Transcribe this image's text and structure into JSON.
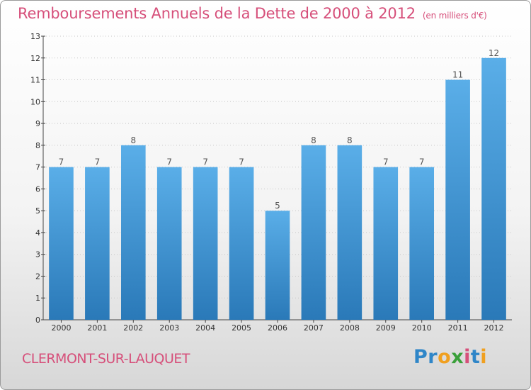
{
  "title": "Remboursements Annuels de la Dette de 2000 à 2012",
  "unit_note": "(en milliers d'€)",
  "commune": "CLERMONT-SUR-LAUQUET",
  "logo": {
    "letters": [
      {
        "char": "P",
        "color": "#2f86c8"
      },
      {
        "char": "r",
        "color": "#2f86c8"
      },
      {
        "char": "o",
        "color": "#f0a020"
      },
      {
        "char": "x",
        "color": "#3aa03a"
      },
      {
        "char": "i",
        "color": "#d64f7a"
      },
      {
        "char": "t",
        "color": "#2f86c8"
      },
      {
        "char": "i",
        "color": "#f0a020"
      }
    ]
  },
  "colors": {
    "title": "#d64f7a",
    "bar_top": "#5aaee8",
    "bar_bottom": "#2a79b8",
    "grid": "#c8c8c8"
  },
  "chart_data": {
    "type": "bar",
    "categories": [
      "2000",
      "2001",
      "2002",
      "2003",
      "2004",
      "2005",
      "2006",
      "2007",
      "2008",
      "2009",
      "2010",
      "2011",
      "2012"
    ],
    "values": [
      7,
      7,
      8,
      7,
      7,
      7,
      5,
      8,
      8,
      7,
      7,
      11,
      12
    ],
    "ylim": [
      0,
      13
    ],
    "yticks": [
      0,
      1,
      2,
      3,
      4,
      5,
      6,
      7,
      8,
      9,
      10,
      11,
      12,
      13
    ],
    "grid": true,
    "title": "Remboursements Annuels de la Dette de 2000 à 2012",
    "xlabel": "",
    "ylabel": ""
  }
}
